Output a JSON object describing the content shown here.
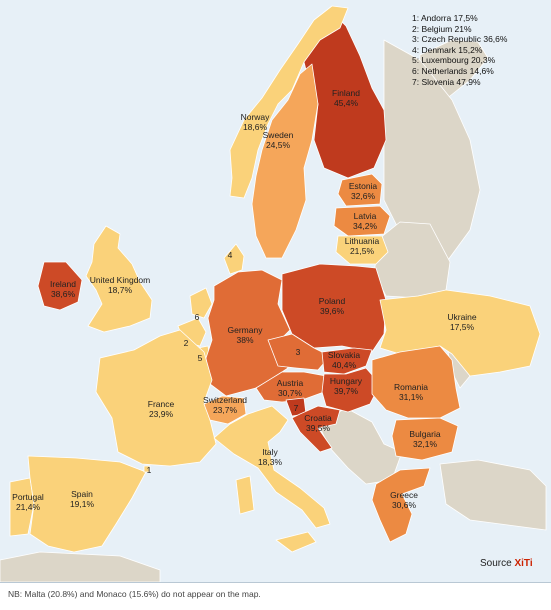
{
  "map": {
    "colors": {
      "sea": "#e7f0f7",
      "no_data": "#dcd6c8",
      "band_1": "#fad27a",
      "band_2": "#f5a65a",
      "band_3": "#ec8a42",
      "band_4": "#e06c36",
      "band_5": "#cd4a26",
      "band_6": "#bf3a1e"
    },
    "countries": [
      {
        "name": "Finland",
        "value": "45,4%"
      },
      {
        "name": "Norway",
        "value": "18,6%"
      },
      {
        "name": "Sweden",
        "value": "24,5%"
      },
      {
        "name": "Estonia",
        "value": "32,6%"
      },
      {
        "name": "Latvia",
        "value": "34,2%"
      },
      {
        "name": "Lithuania",
        "value": "21,5%"
      },
      {
        "name": "Ireland",
        "value": "38,6%"
      },
      {
        "name": "United Kingdom",
        "value": "18,7%"
      },
      {
        "name": "Poland",
        "value": "39,6%"
      },
      {
        "name": "Ukraine",
        "value": "17,5%"
      },
      {
        "name": "Germany",
        "value": "38%"
      },
      {
        "name": "Slovakia",
        "value": "40,4%"
      },
      {
        "name": "Hungary",
        "value": "39,7%"
      },
      {
        "name": "Austria",
        "value": "30,7%"
      },
      {
        "name": "Romania",
        "value": "31,1%"
      },
      {
        "name": "France",
        "value": "23,9%"
      },
      {
        "name": "Switzerland",
        "value": "23,7%"
      },
      {
        "name": "Croatia",
        "value": "39,5%"
      },
      {
        "name": "Bulgaria",
        "value": "32,1%"
      },
      {
        "name": "Italy",
        "value": "18,3%"
      },
      {
        "name": "Portugal",
        "value": "21,4%"
      },
      {
        "name": "Spain",
        "value": "19,1%"
      },
      {
        "name": "Greece",
        "value": "30,6%"
      }
    ],
    "markers": [
      "1",
      "2",
      "3",
      "4",
      "5",
      "6",
      "7"
    ]
  },
  "legend": [
    "1: Andorra 17,5%",
    "2: Belgium 21%",
    "3: Czech Republic 36,6%",
    "4: Denmark 15,2%",
    "5: Luxembourg 20,3%",
    "6: Netherlands 14,6%",
    "7: Slovenia 47,9%"
  ],
  "source": {
    "prefix": "Source ",
    "brand": "XiTi"
  },
  "footnote": "NB: Malta (20.8%) and Monaco (15.6%) do not appear on the map."
}
